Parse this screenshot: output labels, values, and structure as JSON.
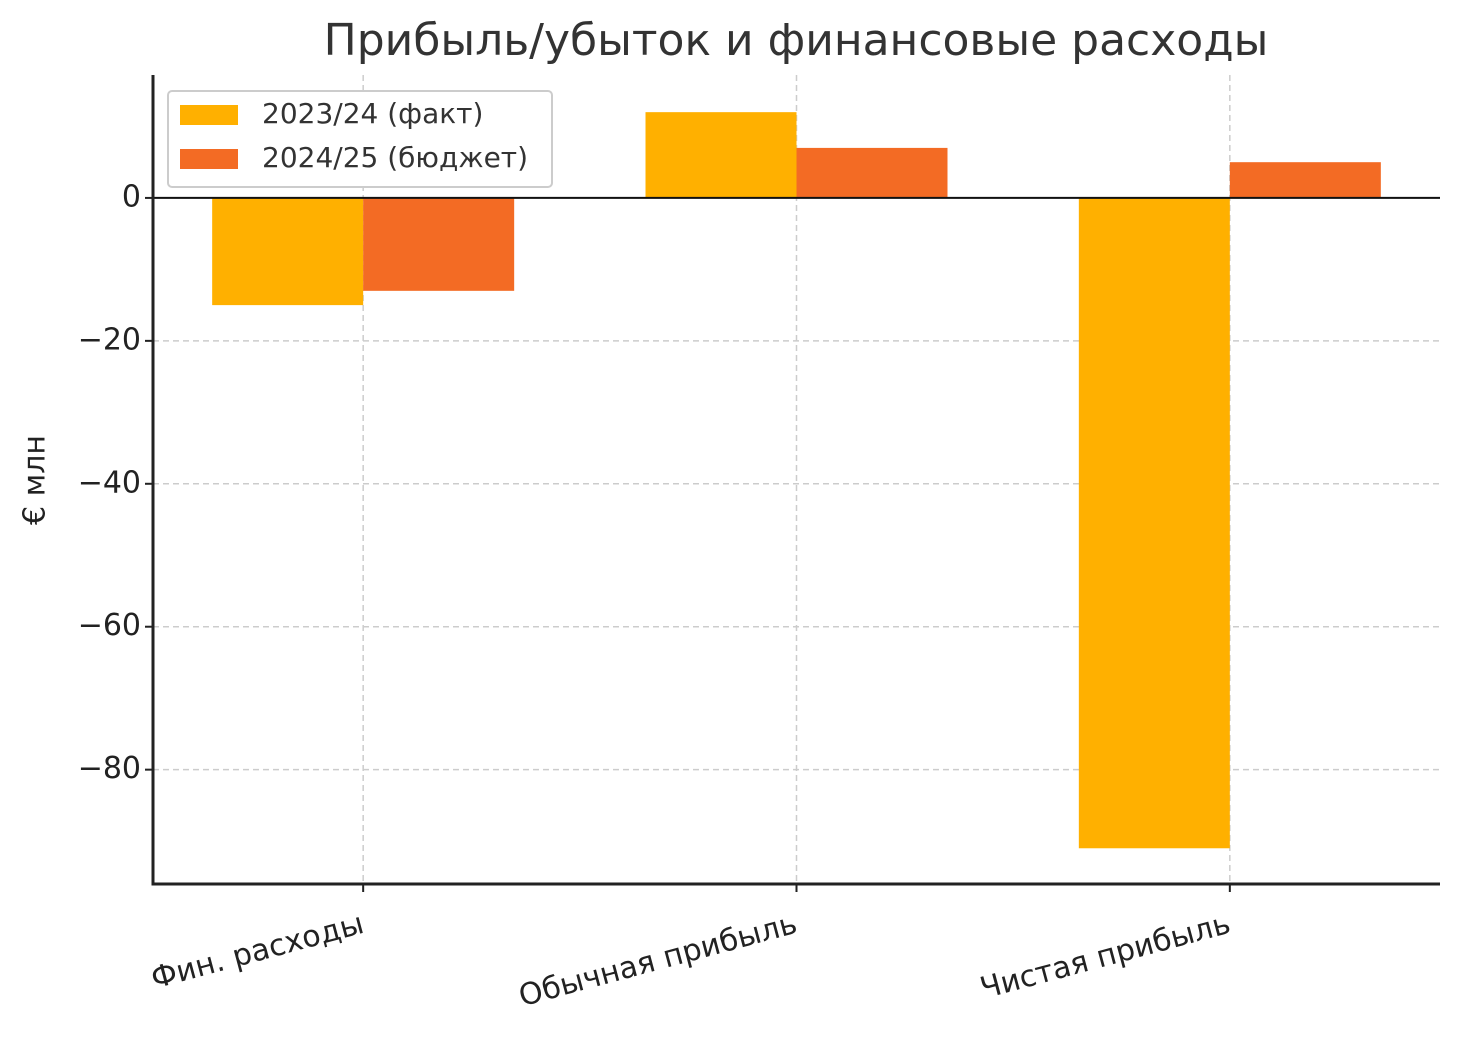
{
  "chart_data": {
    "type": "bar",
    "title": "Прибыль/убыток и финансовые расходы",
    "y_label": "€ млн",
    "categories": [
      "Фин. расходы",
      "Обычная прибыль",
      "Чистая прибыль"
    ],
    "series": [
      {
        "name": "2023/24 (факт)",
        "color": "#ffb000",
        "values": [
          -15,
          12,
          -91
        ]
      },
      {
        "name": "2024/25 (бюджет)",
        "color": "#f36b24",
        "values": [
          -13,
          7,
          5
        ]
      }
    ],
    "ylim": [
      -96,
      17.2
    ],
    "yticks": [
      {
        "value": -80,
        "label": "−80"
      },
      {
        "value": -60,
        "label": "−60"
      },
      {
        "value": -40,
        "label": "−40"
      },
      {
        "value": -20,
        "label": "−20"
      },
      0
    ],
    "grid": true,
    "legend": "upper left"
  }
}
